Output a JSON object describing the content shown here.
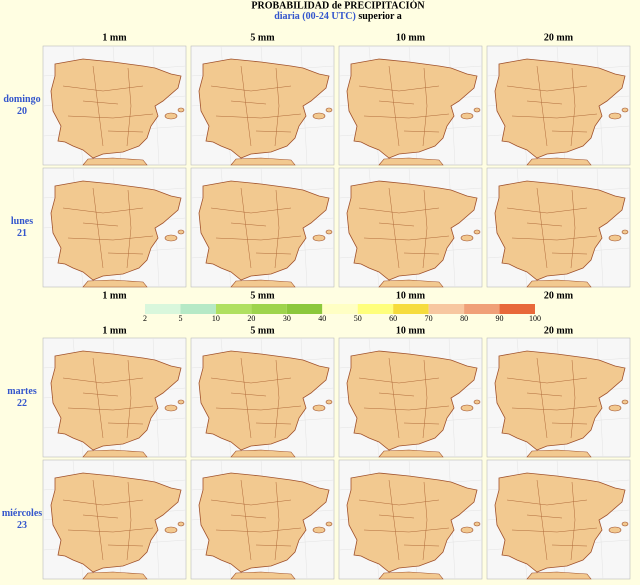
{
  "header": {
    "title": "PROBABILIDAD de PRECIPITACIÓN",
    "period": "diaria (00-24 UTC)",
    "suffix": "superior a"
  },
  "column_headers": [
    "1 mm",
    "5 mm",
    "10 mm",
    "20 mm"
  ],
  "rows": [
    {
      "day": "domingo",
      "date": "20"
    },
    {
      "day": "lunes",
      "date": "21"
    },
    {
      "day": "martes",
      "date": "22"
    },
    {
      "day": "miércoles",
      "date": "23"
    }
  ],
  "legend": {
    "stops": [
      2,
      5,
      10,
      20,
      30,
      40,
      50,
      60,
      70,
      80,
      90,
      100
    ],
    "colors": [
      "#d9f7dc",
      "#b6e9c6",
      "#b0e060",
      "#9ed44c",
      "#8cc83c",
      "#ffffc4",
      "#ffff7c",
      "#f6dc3c",
      "#f7c7a0",
      "#f0a078",
      "#e8683a"
    ]
  }
}
